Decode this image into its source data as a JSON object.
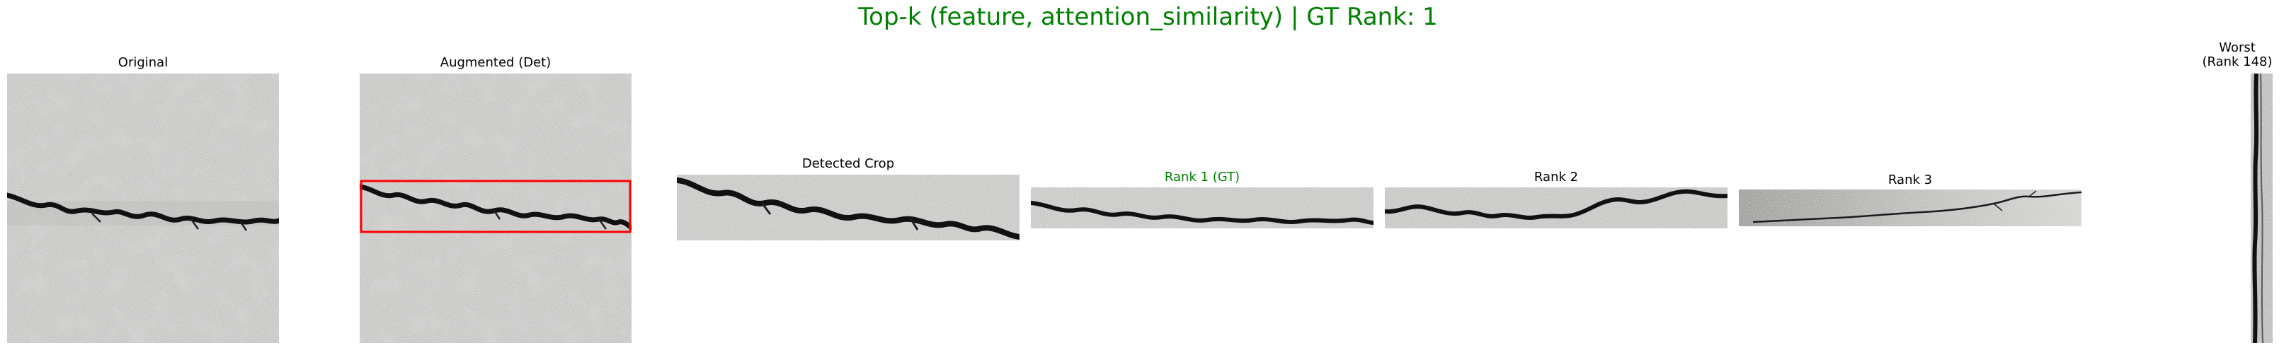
{
  "figure": {
    "suptitle": "Top-k (feature, attention_similarity) | GT Rank: 1",
    "suptitle_color": "#008000"
  },
  "panels": {
    "original": {
      "title": "Original",
      "image": "concrete-crack-square"
    },
    "augmented": {
      "title": "Augmented (Det)",
      "image": "concrete-crack-square-with-detection-box",
      "box_color": "#ff0000"
    },
    "detected_crop": {
      "title": "Detected Crop",
      "image": "crack-crop-strip"
    },
    "rank1": {
      "title": "Rank 1 (GT)",
      "title_color": "#008000",
      "image": "crack-strip"
    },
    "rank2": {
      "title": "Rank 2",
      "image": "crack-strip"
    },
    "rank3": {
      "title": "Rank 3",
      "image": "thin-crack-strip"
    },
    "worst": {
      "title_line1": "Worst",
      "title_line2": "(Rank 148)",
      "image": "vertical-crack-strip"
    }
  }
}
